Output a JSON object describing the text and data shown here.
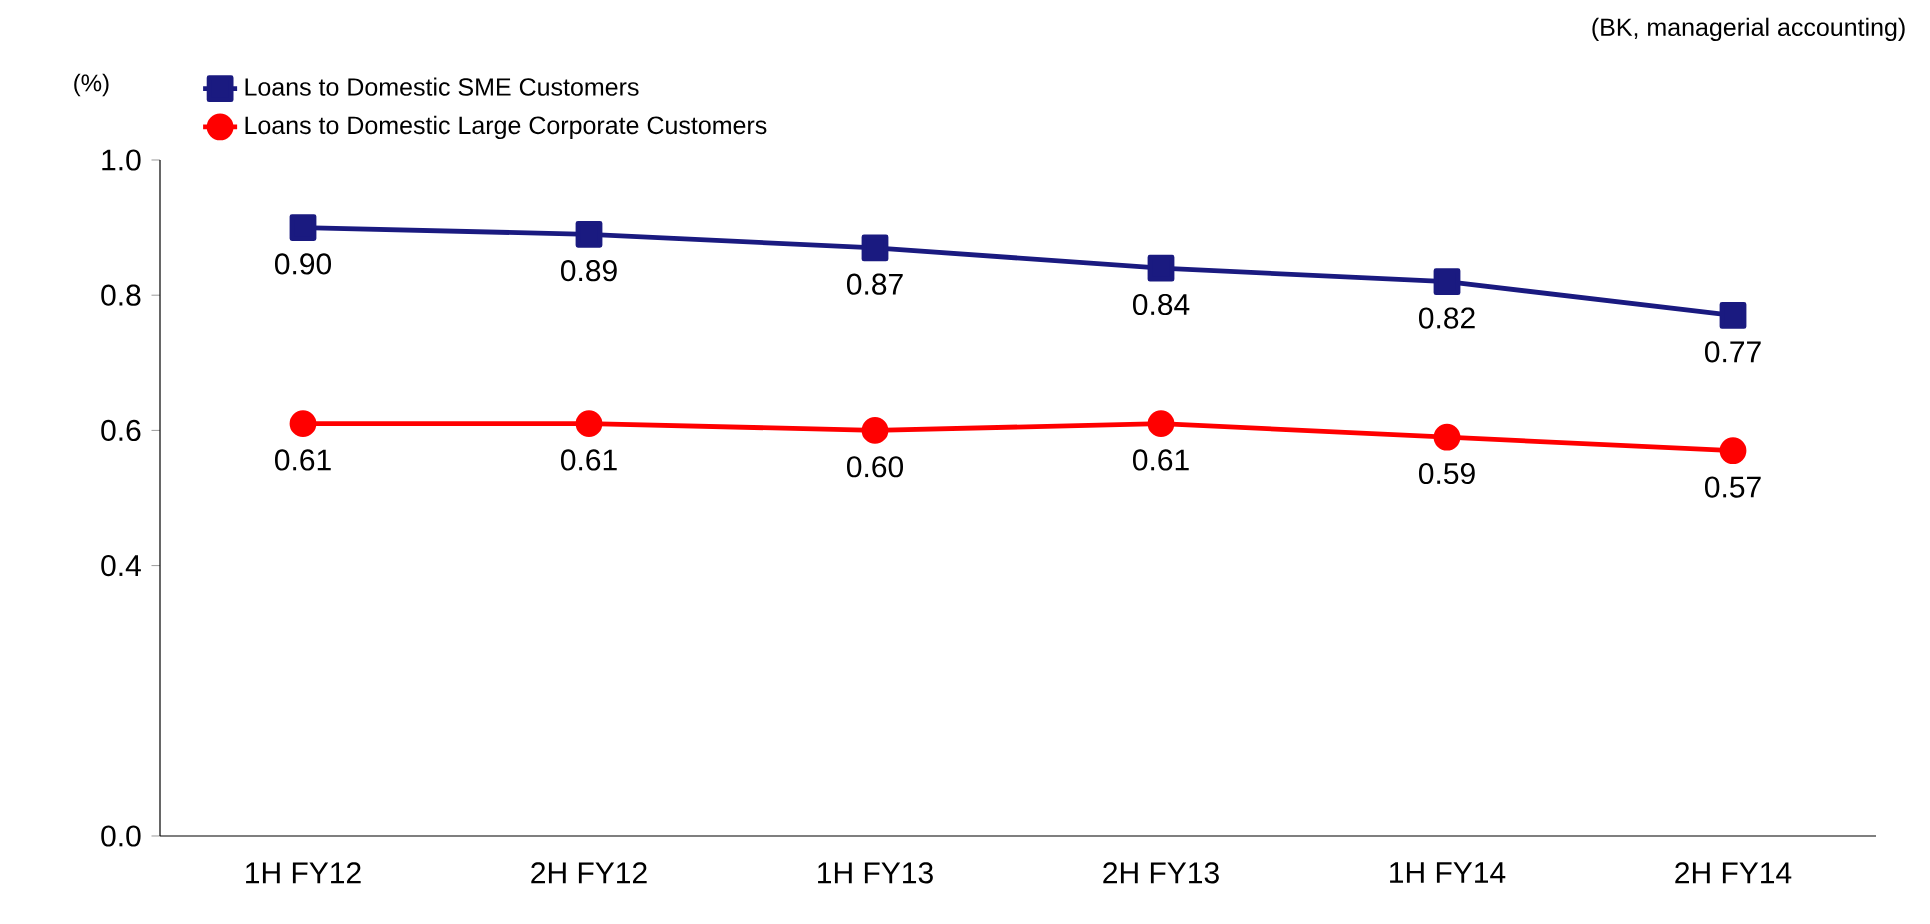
{
  "chart_data": {
    "type": "line",
    "ylabel": "(%)",
    "annotations": [
      "(BK, managerial accounting)"
    ],
    "categories": [
      "1H FY12",
      "2H FY12",
      "1H FY13",
      "2H FY13",
      "1H FY14",
      "2H FY14"
    ],
    "series": [
      {
        "name": "Loans to Domestic SME Customers",
        "color": "#1a1a80",
        "marker": "square",
        "values": [
          0.9,
          0.89,
          0.87,
          0.84,
          0.82,
          0.77
        ],
        "value_labels": [
          "0.90",
          "0.89",
          "0.87",
          "0.84",
          "0.82",
          "0.77"
        ]
      },
      {
        "name": "Loans to Domestic Large Corporate Customers",
        "color": "#ff0000",
        "marker": "circle",
        "values": [
          0.61,
          0.61,
          0.6,
          0.61,
          0.59,
          0.57
        ],
        "value_labels": [
          "0.61",
          "0.61",
          "0.60",
          "0.61",
          "0.59",
          "0.57"
        ]
      }
    ],
    "ylim": [
      0,
      1.0
    ],
    "yticks": [
      {
        "value": 0,
        "label": "0.0"
      },
      0.4,
      0.6,
      0.8,
      {
        "value": 1.0,
        "label": "1.0"
      }
    ],
    "legend": "top left",
    "grid": false,
    "line_style": "solid"
  }
}
